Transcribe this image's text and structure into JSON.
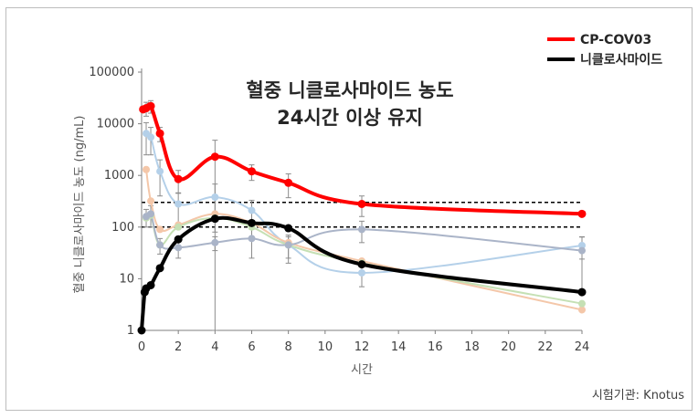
{
  "chart_data": {
    "type": "line",
    "title_lines": [
      "혈중 니클로사마이드 농도",
      "24시간 이상 유지"
    ],
    "xlabel": "시간",
    "ylabel": "혈중 니클로사마이드 농도 (ng/mL)",
    "y_scale": "log",
    "xlim": [
      0,
      24
    ],
    "ylim": [
      1,
      100000
    ],
    "x_ticks": [
      "0",
      "2",
      "4",
      "6",
      "8",
      "10",
      "12",
      "14",
      "16",
      "18",
      "20",
      "22",
      "24"
    ],
    "y_ticks": [
      "1",
      "10",
      "100",
      "1000",
      "10000",
      "100000"
    ],
    "legend_position": "top-right",
    "source_text": "시험기관: Knotus",
    "reference_lines": [
      {
        "y": 300,
        "style": "dashed",
        "color": "#000000"
      },
      {
        "y": 100,
        "style": "dashed",
        "color": "#000000"
      }
    ],
    "series": [
      {
        "name": "CP-COV03",
        "color": "#ff0000",
        "in_legend": true,
        "x": [
          0.083,
          0.25,
          0.5,
          1,
          2,
          4,
          6,
          8,
          12,
          24
        ],
        "y": [
          19000,
          20000,
          22000,
          6500,
          850,
          2300,
          1200,
          720,
          280,
          180
        ],
        "err": [
          0,
          6000,
          6000,
          2000,
          400,
          2500,
          400,
          350,
          120,
          0
        ]
      },
      {
        "name": "니클로사마이드",
        "color": "#000000",
        "in_legend": true,
        "x": [
          0,
          0.167,
          0.25,
          0.5,
          1,
          2,
          4,
          6,
          8,
          12,
          24
        ],
        "y": [
          1,
          5.5,
          6.5,
          7.5,
          16,
          58,
          145,
          120,
          95,
          19,
          5.5
        ],
        "err": [
          0,
          0,
          0,
          0,
          0,
          0,
          0,
          0,
          0,
          0,
          0
        ]
      },
      {
        "name": "",
        "color": "#b4d0e9",
        "in_legend": false,
        "x": [
          0.25,
          0.5,
          1,
          2,
          4,
          6,
          8,
          12,
          24
        ],
        "y": [
          6500,
          5500,
          1200,
          280,
          380,
          210,
          45,
          13,
          44
        ],
        "err": [
          4000,
          3000,
          800,
          180,
          300,
          120,
          25,
          6,
          20
        ]
      },
      {
        "name": "",
        "color": "#f4c7a9",
        "in_legend": false,
        "x": [
          0.25,
          0.5,
          1,
          2,
          4,
          6,
          8,
          12,
          24
        ],
        "y": [
          1300,
          320,
          90,
          110,
          180,
          120,
          50,
          22,
          2.5
        ],
        "err": [
          0,
          0,
          0,
          0,
          0,
          0,
          0,
          0,
          0
        ]
      },
      {
        "name": "",
        "color": "#c5e0b4",
        "in_legend": false,
        "x": [
          0.25,
          0.5,
          1,
          2,
          4,
          6,
          8,
          12,
          24
        ],
        "y": [
          150,
          170,
          45,
          100,
          150,
          100,
          45,
          20,
          3.3
        ],
        "err": [
          0,
          0,
          0,
          0,
          0,
          0,
          0,
          0,
          0
        ]
      },
      {
        "name": "",
        "color": "#aab4c8",
        "in_legend": false,
        "x": [
          0.25,
          0.5,
          1,
          2,
          4,
          6,
          8,
          12,
          24
        ],
        "y": [
          160,
          180,
          45,
          40,
          50,
          60,
          45,
          90,
          35
        ],
        "err": [
          60,
          80,
          15,
          15,
          15,
          35,
          20,
          40,
          30
        ]
      }
    ]
  }
}
